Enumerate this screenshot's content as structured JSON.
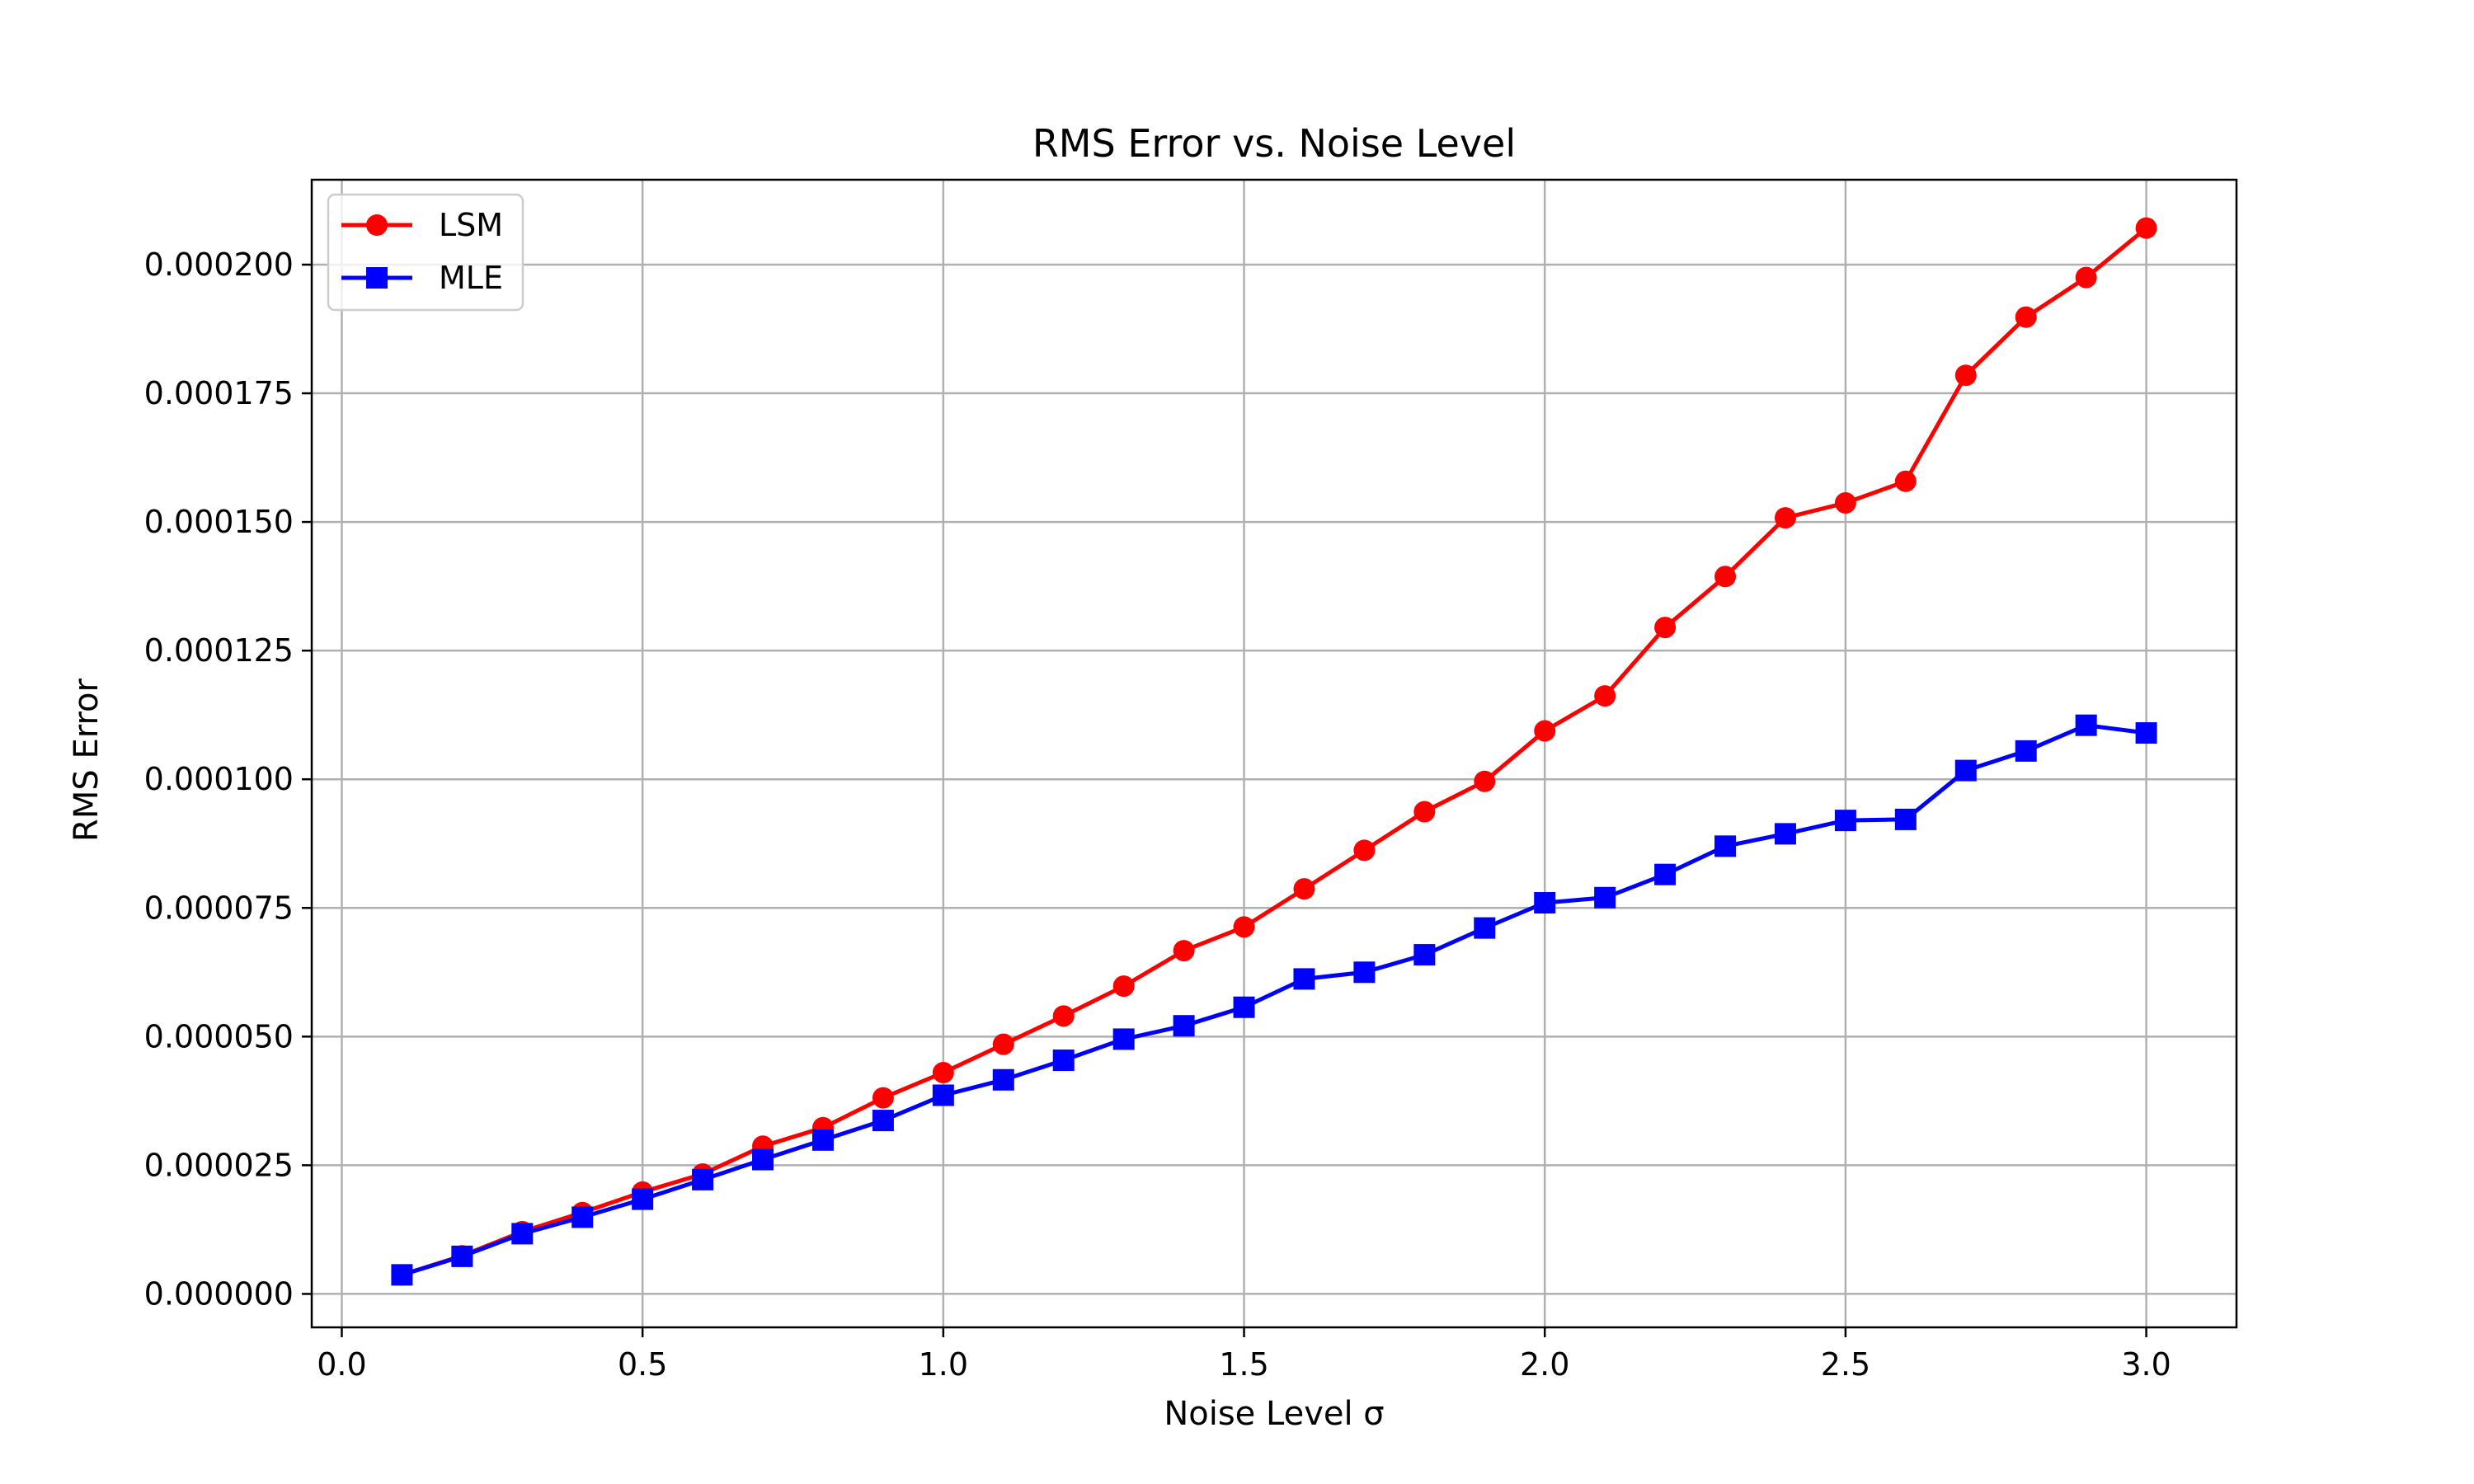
{
  "chart_data": {
    "type": "line",
    "title": "RMS Error vs. Noise Level",
    "xlabel": "Noise Level σ",
    "ylabel": "RMS Error",
    "xlim": [
      -0.05,
      3.15
    ],
    "ylim": [
      -6.5e-06,
      0.0002165
    ],
    "xticks": [
      0.0,
      0.5,
      1.0,
      1.5,
      2.0,
      2.5,
      3.0
    ],
    "xtick_labels": [
      "0.0",
      "0.5",
      "1.0",
      "1.5",
      "2.0",
      "2.5",
      "3.0"
    ],
    "yticks": [
      0,
      2.5e-05,
      5e-05,
      7.5e-05,
      0.0001,
      0.000125,
      0.00015,
      0.000175,
      0.0002
    ],
    "ytick_labels": [
      "0.000000",
      "0.000025",
      "0.000050",
      "0.000075",
      "0.000100",
      "0.000125",
      "0.000150",
      "0.000175",
      "0.000200"
    ],
    "grid": true,
    "legend": "top-left",
    "x": [
      0.1,
      0.2,
      0.3,
      0.4,
      0.5,
      0.6,
      0.7,
      0.8,
      0.9,
      1.0,
      1.1,
      1.2,
      1.3,
      1.4,
      1.5,
      1.6,
      1.7,
      1.8,
      1.9,
      2.0,
      2.1,
      2.2,
      2.3,
      2.4,
      2.5,
      2.6,
      2.7,
      2.8,
      2.9,
      3.0
    ],
    "series": [
      {
        "name": "LSM",
        "color": "#ff0000",
        "marker": "circle",
        "values": [
          3.7e-06,
          7.4e-06,
          1.21e-05,
          1.58e-05,
          1.98e-05,
          2.33e-05,
          2.87e-05,
          3.23e-05,
          3.81e-05,
          4.3e-05,
          4.85e-05,
          5.4e-05,
          5.98e-05,
          6.67e-05,
          7.13e-05,
          7.87e-05,
          8.62e-05,
          9.37e-05,
          9.96e-05,
          0.0001094,
          0.0001162,
          0.0001295,
          0.0001394,
          0.0001508,
          0.0001537,
          0.0001579,
          0.0001785,
          0.0001898,
          0.0001975,
          0.0002071
        ]
      },
      {
        "name": "MLE",
        "color": "#0000ff",
        "marker": "square",
        "values": [
          3.7e-06,
          7.3e-06,
          1.17e-05,
          1.49e-05,
          1.84e-05,
          2.22e-05,
          2.61e-05,
          2.99e-05,
          3.37e-05,
          3.86e-05,
          4.16e-05,
          4.54e-05,
          4.95e-05,
          5.21e-05,
          5.57e-05,
          6.12e-05,
          6.25e-05,
          6.59e-05,
          7.11e-05,
          7.6e-05,
          7.7e-05,
          8.15e-05,
          8.7e-05,
          8.94e-05,
          9.2e-05,
          9.22e-05,
          0.0001017,
          0.0001055,
          0.0001105,
          0.000109
        ]
      }
    ]
  }
}
